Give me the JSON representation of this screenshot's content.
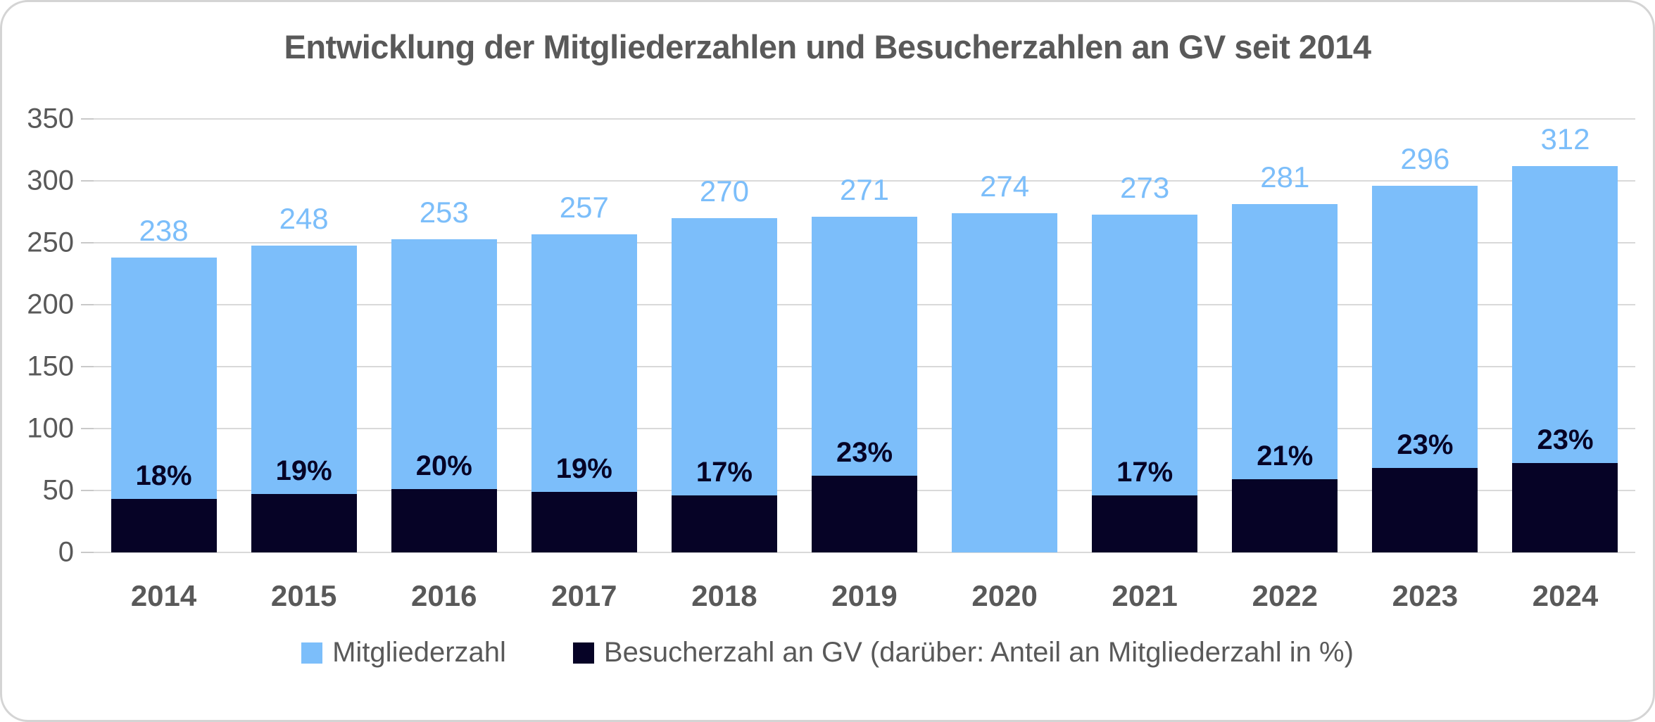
{
  "title": "Entwicklung der Mitgliederzahlen und Besucherzahlen an GV seit 2014",
  "colors": {
    "members_bar": "#7CBEFA",
    "visitors_bar": "#060326",
    "text_gray": "#595959",
    "gridline": "#D9D9D9",
    "frame_border": "#D4D4D4",
    "background": "#FFFFFF"
  },
  "chart_data": {
    "type": "bar",
    "bar_mode": "overlap",
    "title": "Entwicklung der Mitgliederzahlen und Besucherzahlen an GV seit 2014",
    "xlabel": "",
    "ylabel": "",
    "ylim": [
      0,
      350
    ],
    "ytick_step": 50,
    "yticks": [
      "0",
      "50",
      "100",
      "150",
      "200",
      "250",
      "300",
      "350"
    ],
    "grid": true,
    "legend_position": "bottom",
    "categories": [
      "2014",
      "2015",
      "2016",
      "2017",
      "2018",
      "2019",
      "2020",
      "2021",
      "2022",
      "2023",
      "2024"
    ],
    "series": [
      {
        "name": "Mitgliederzahl",
        "color": "#7CBEFA",
        "values": [
          238,
          248,
          253,
          257,
          270,
          271,
          274,
          273,
          281,
          296,
          312
        ],
        "data_labels": [
          "238",
          "248",
          "253",
          "257",
          "270",
          "271",
          "274",
          "273",
          "281",
          "296",
          "312"
        ]
      },
      {
        "name": "Besucherzahl an GV (darüber: Anteil an Mitgliederzahl in %)",
        "color": "#060326",
        "values": [
          43,
          47,
          51,
          49,
          46,
          62,
          null,
          46,
          59,
          68,
          72
        ],
        "data_labels": [
          "18%",
          "19%",
          "20%",
          "19%",
          "17%",
          "23%",
          null,
          "17%",
          "21%",
          "23%",
          "23%"
        ]
      }
    ]
  }
}
